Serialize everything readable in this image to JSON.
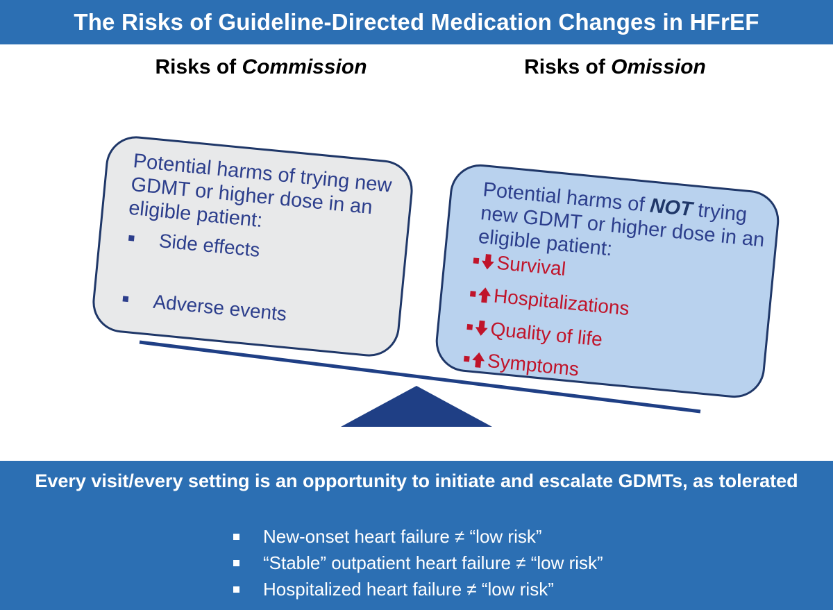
{
  "title": "The Risks of Guideline-Directed Medication Changes in HFrEF",
  "left_column": {
    "heading_prefix": "Risks of ",
    "heading_em": "Commission",
    "box_lines": [
      "Potential harms of trying new",
      "GDMT or higher dose in an",
      "eligible patient:"
    ],
    "items": [
      "Side effects",
      "Adverse events"
    ]
  },
  "right_column": {
    "heading_prefix": "Risks of ",
    "heading_em": "Omission",
    "box_line1_prefix": "Potential harms of ",
    "box_line1_strong": "NOT",
    "box_line1_suffix": " trying",
    "box_lines": [
      "new GDMT or higher dose in an",
      "eligible patient:"
    ],
    "items": [
      {
        "direction": "down",
        "label": "Survival"
      },
      {
        "direction": "up",
        "label": "Hospitalizations"
      },
      {
        "direction": "down",
        "label": "Quality of life"
      },
      {
        "direction": "up",
        "label": "Symptoms"
      }
    ]
  },
  "bottom": {
    "headline": "Every visit/every setting is an opportunity to initiate and escalate GDMTs, as tolerated",
    "bullets": [
      "New-onset heart failure ≠ “low risk”",
      "“Stable” outpatient heart failure ≠ “low risk”",
      "Hospitalized heart failure ≠ “low risk”"
    ]
  },
  "colors": {
    "banner": "#2c6fb3",
    "box_left": "#e8e9ea",
    "box_right": "#b9d2ee",
    "accent_red": "#c0142a",
    "text_blue": "#2c3e8c",
    "scale_navy": "#1f3f85"
  }
}
